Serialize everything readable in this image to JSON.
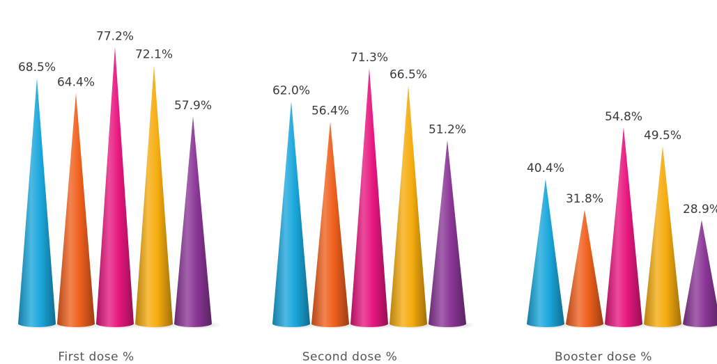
{
  "chart_data": {
    "type": "bar",
    "bar_shape": "cone",
    "categories": [
      "First dose %",
      "Second dose %",
      "Booster dose %"
    ],
    "series": [
      {
        "values": [
          68.5,
          62.0,
          40.4
        ],
        "labels": [
          "68.5%",
          "62.0%",
          "40.4%"
        ],
        "color": "#1aa7dc"
      },
      {
        "values": [
          64.4,
          56.4,
          31.8
        ],
        "labels": [
          "64.4%",
          "56.4%",
          "31.8%"
        ],
        "color": "#f0601d"
      },
      {
        "values": [
          77.2,
          71.3,
          54.8
        ],
        "labels": [
          "77.2%",
          "71.3%",
          "54.8%"
        ],
        "color": "#e8177f"
      },
      {
        "values": [
          72.1,
          66.5,
          49.5
        ],
        "labels": [
          "72.1%",
          "66.5%",
          "49.5%"
        ],
        "color": "#f5ac0e"
      },
      {
        "values": [
          57.9,
          51.2,
          28.9
        ],
        "labels": [
          "57.9%",
          "51.2%",
          "28.9%"
        ],
        "color": "#8a3696"
      }
    ],
    "ylim": [
      0,
      80
    ],
    "grid": false,
    "legend": "none"
  }
}
